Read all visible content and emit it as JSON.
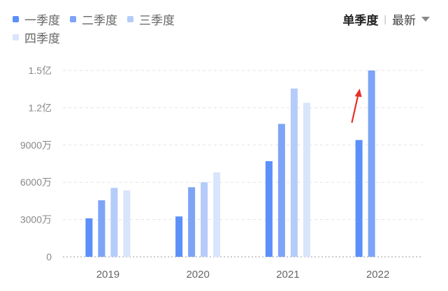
{
  "legend": {
    "items": [
      {
        "label": "一季度",
        "color": "#5b8ff9"
      },
      {
        "label": "二季度",
        "color": "#7da4f6"
      },
      {
        "label": "三季度",
        "color": "#b5ccfa"
      },
      {
        "label": "四季度",
        "color": "#d9e5fb"
      }
    ]
  },
  "controls": {
    "mode_label": "单季度",
    "separator": "|",
    "sort_label": "最新"
  },
  "chart_data": {
    "type": "bar",
    "categories": [
      "2019",
      "2020",
      "2021",
      "2022"
    ],
    "series": [
      {
        "name": "一季度",
        "values": [
          3100,
          3250,
          7700,
          9400
        ]
      },
      {
        "name": "二季度",
        "values": [
          4550,
          5600,
          10700,
          15000
        ]
      },
      {
        "name": "三季度",
        "values": [
          5550,
          6000,
          13550,
          null
        ]
      },
      {
        "name": "四季度",
        "values": [
          5350,
          6800,
          12400,
          null
        ]
      }
    ],
    "unit": "万",
    "ylim": [
      0,
      15000
    ],
    "yticks": [
      {
        "value": 0,
        "label": "0"
      },
      {
        "value": 3000,
        "label": "3000万"
      },
      {
        "value": 6000,
        "label": "6000万"
      },
      {
        "value": 9000,
        "label": "9000万"
      },
      {
        "value": 12000,
        "label": "1.2亿"
      },
      {
        "value": 15000,
        "label": "1.5亿"
      }
    ],
    "grid": true,
    "legend_position": "top-left",
    "annotation": {
      "type": "arrow",
      "color": "#e8302a",
      "target_category": "2022",
      "target_series": "二季度"
    }
  }
}
